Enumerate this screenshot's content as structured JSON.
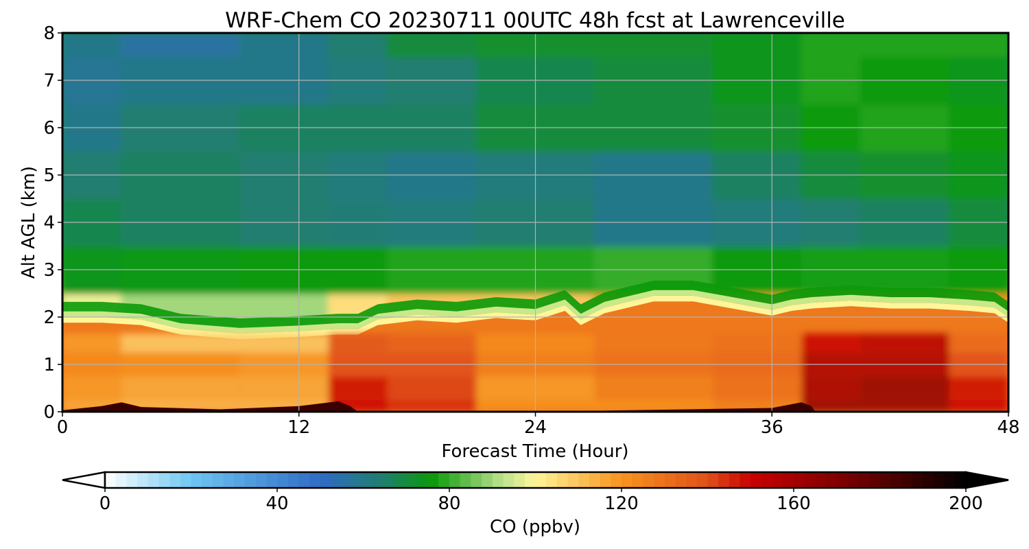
{
  "chart_data": {
    "type": "heatmap",
    "title": "WRF-Chem CO  20230711 00UTC 48h fcst at Lawrenceville",
    "xlabel": "Forecast Time (Hour)",
    "ylabel": "Alt AGL (km)",
    "xlim": [
      0,
      48
    ],
    "ylim": [
      0,
      8
    ],
    "xticks": [
      0,
      12,
      24,
      36,
      48
    ],
    "yticks": [
      0,
      1,
      2,
      3,
      4,
      5,
      6,
      7,
      8
    ],
    "grid": true,
    "colorbar": {
      "label": "CO  (ppbv)",
      "orientation": "horizontal",
      "placement": "bottom",
      "range": [
        0,
        200
      ],
      "ticks": [
        0,
        40,
        80,
        120,
        160,
        200
      ],
      "extend": "both",
      "color_stops": [
        {
          "value": 0,
          "color": "#ffffff"
        },
        {
          "value": 20,
          "color": "#6ec6f2"
        },
        {
          "value": 50,
          "color": "#2f6bc4"
        },
        {
          "value": 65,
          "color": "#1f7f6a"
        },
        {
          "value": 76,
          "color": "#0a9a0a"
        },
        {
          "value": 92,
          "color": "#b9e08c"
        },
        {
          "value": 100,
          "color": "#fff59a"
        },
        {
          "value": 120,
          "color": "#f7931e"
        },
        {
          "value": 140,
          "color": "#e0501a"
        },
        {
          "value": 150,
          "color": "#c80000"
        },
        {
          "value": 175,
          "color": "#6e0000"
        },
        {
          "value": 200,
          "color": "#000000"
        }
      ]
    },
    "boundary_layer_top_km": {
      "x": [
        0,
        2,
        4,
        6,
        9,
        12,
        14,
        15,
        16,
        18,
        20,
        22,
        24,
        25.5,
        26.3,
        27.5,
        30,
        32,
        34,
        36,
        37,
        38,
        40,
        42,
        44,
        46,
        47.3,
        48
      ],
      "y": [
        2.0,
        2.0,
        1.95,
        1.75,
        1.65,
        1.7,
        1.75,
        1.75,
        1.95,
        2.05,
        2.0,
        2.1,
        2.05,
        2.25,
        1.95,
        2.2,
        2.45,
        2.45,
        2.3,
        2.15,
        2.25,
        2.3,
        2.35,
        2.3,
        2.3,
        2.25,
        2.2,
        2.0
      ]
    },
    "surface_layer_top_km": {
      "x": [
        0,
        2,
        3,
        4,
        8,
        12,
        14,
        14.6,
        15,
        24,
        36,
        37.5,
        38,
        38.2,
        48
      ],
      "y": [
        0.03,
        0.12,
        0.2,
        0.1,
        0.05,
        0.12,
        0.22,
        0.12,
        0.0,
        0.0,
        0.08,
        0.2,
        0.12,
        0.0,
        0.0
      ]
    },
    "values": {
      "x": [
        0,
        6,
        12,
        15,
        18,
        24,
        30,
        36,
        39,
        42,
        48
      ],
      "y": [
        0,
        0.5,
        1.0,
        1.5,
        2.0,
        3.0,
        4.0,
        5.0,
        6.0,
        7.0,
        8.0
      ],
      "co_ppbv": [
        [
          115,
          112,
          112,
          150,
          145,
          120,
          120,
          125,
          165,
          165,
          150
        ],
        [
          118,
          115,
          115,
          148,
          142,
          118,
          125,
          130,
          160,
          165,
          148
        ],
        [
          122,
          120,
          118,
          140,
          140,
          125,
          130,
          132,
          158,
          158,
          140
        ],
        [
          118,
          108,
          108,
          138,
          135,
          122,
          128,
          130,
          150,
          155,
          132
        ],
        [
          98,
          90,
          90,
          105,
          110,
          110,
          120,
          118,
          138,
          142,
          120
        ],
        [
          74,
          75,
          76,
          76,
          78,
          78,
          80,
          76,
          77,
          77,
          76
        ],
        [
          68,
          66,
          64,
          63,
          62,
          64,
          60,
          62,
          64,
          66,
          70
        ],
        [
          64,
          66,
          64,
          62,
          60,
          62,
          60,
          66,
          70,
          72,
          74
        ],
        [
          60,
          64,
          66,
          66,
          66,
          70,
          70,
          72,
          76,
          78,
          76
        ],
        [
          58,
          60,
          60,
          62,
          64,
          68,
          70,
          74,
          78,
          76,
          74
        ],
        [
          60,
          56,
          60,
          64,
          70,
          72,
          72,
          74,
          78,
          78,
          78
        ]
      ]
    }
  }
}
